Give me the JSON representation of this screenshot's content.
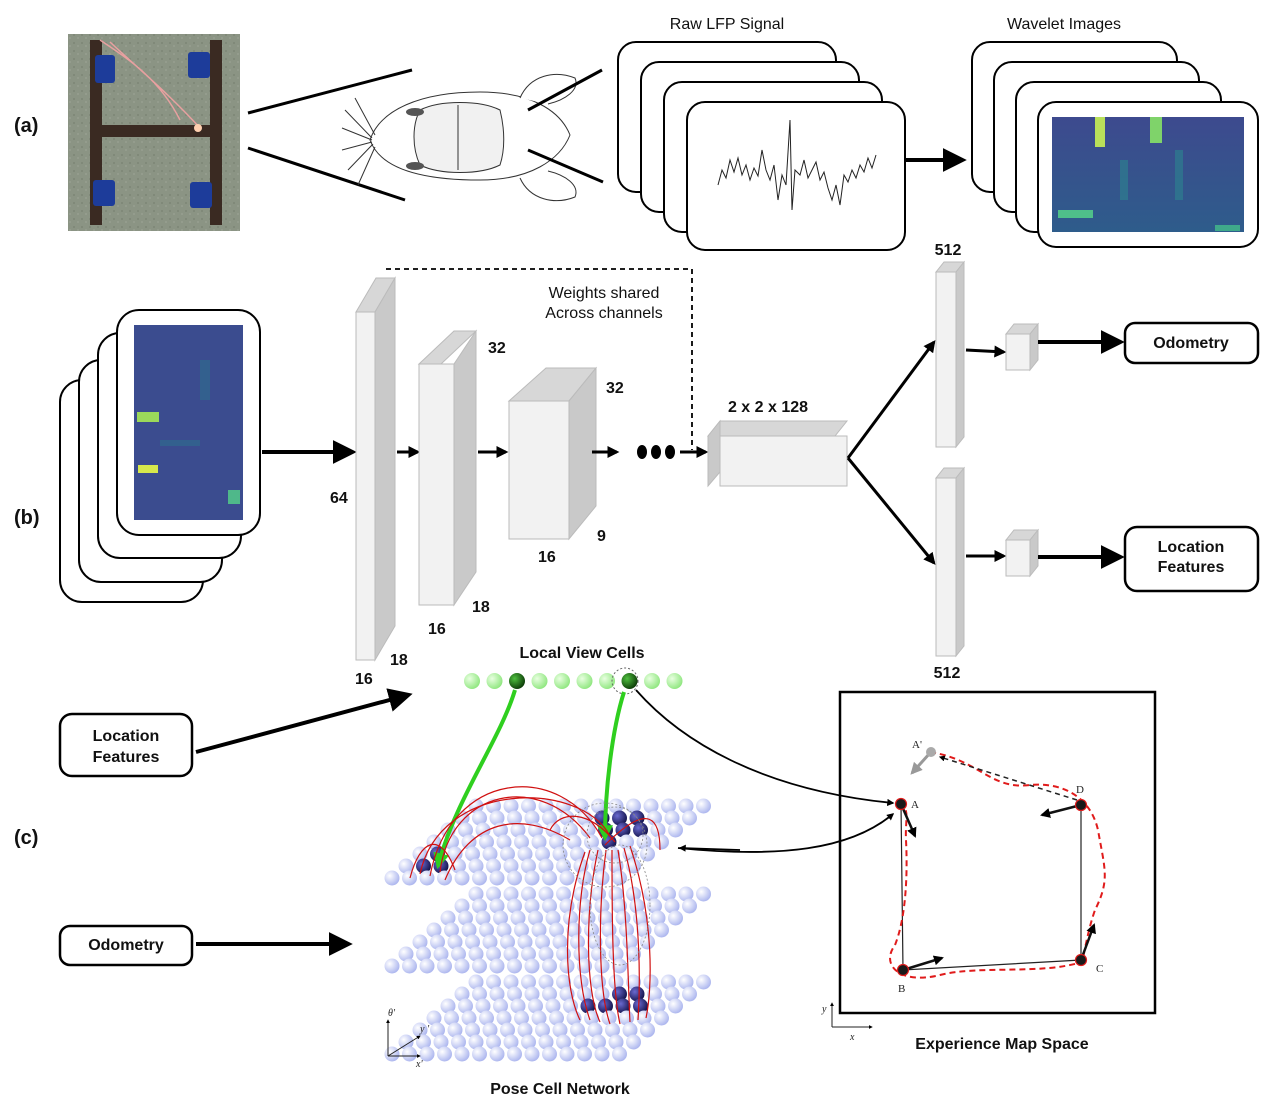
{
  "panels": {
    "a": "(a)",
    "b": "(b)",
    "c": "(c)"
  },
  "section_a": {
    "raw_signal_title": "Raw LFP Signal",
    "wavelet_title": "Wavelet Images"
  },
  "section_b": {
    "shared_note_line1": "Weights shared",
    "shared_note_line2": "Across channels",
    "layer1": {
      "height": "64",
      "depth": "18",
      "width": "16"
    },
    "layer2": {
      "top": "32",
      "depth": "18",
      "width": "16"
    },
    "layer3": {
      "top": "32",
      "depth": "9",
      "width": "16"
    },
    "bottleneck": "2 x 2 x 128",
    "fc_top": "512",
    "fc_bottom": "512",
    "output_odometry": "Odometry",
    "output_location_line1": "Location",
    "output_location_line2": "Features"
  },
  "section_c": {
    "input_location_line1": "Location",
    "input_location_line2": "Features",
    "input_odometry": "Odometry",
    "local_view_title": "Local View Cells",
    "pose_title": "Pose Cell Network",
    "map_title": "Experience Map Space",
    "pose_axes": {
      "theta": "θ'",
      "y": "y '",
      "x": "x'"
    },
    "map_axes": {
      "y": "y",
      "x": "x"
    },
    "map_nodes": {
      "A": "A",
      "A_prime": "A'",
      "B": "B",
      "C": "C",
      "D": "D"
    }
  },
  "colors": {
    "accent_green": "#2fcf1f",
    "red_path": "#e01b1b",
    "viridis_bg": "#3b4b8f",
    "dark_blue_cell": "#1a1a5e",
    "light_blue_cell": "#c9d0f4"
  }
}
